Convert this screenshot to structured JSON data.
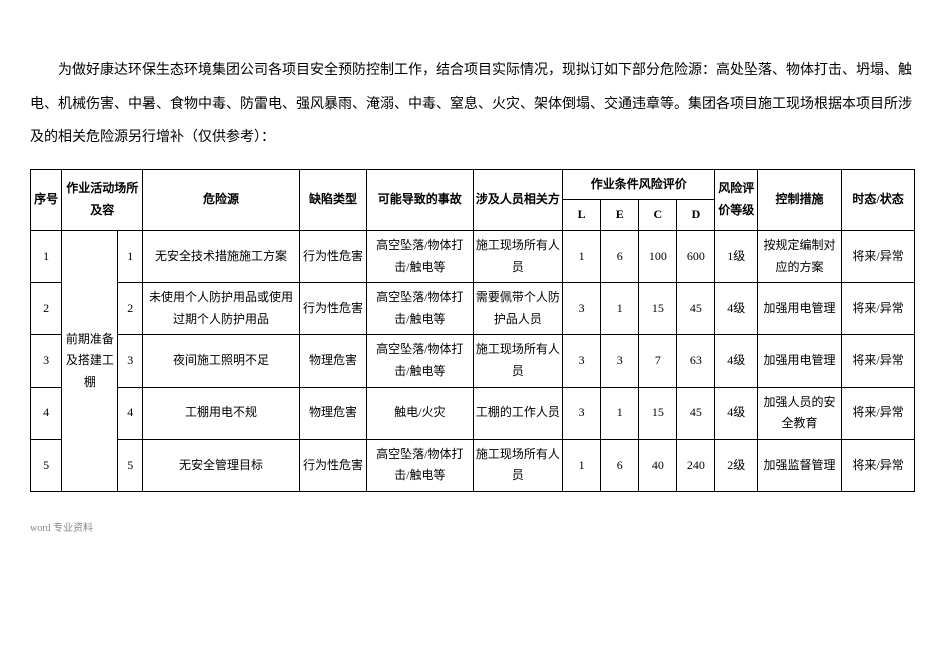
{
  "intro": "为做好康达环保生态环境集团公司各项目安全预防控制工作，结合项目实际情况，现拟订如下部分危险源：高处坠落、物体打击、坍塌、触电、机械伤害、中暑、食物中毒、防雷电、强风暴雨、淹溺、中毒、窒息、火灾、架体倒塌、交通违章等。集团各项目施工现场根据本项目所涉及的相关危险源另行增补（仅供参考）：",
  "headers": {
    "seq": "序号",
    "loc": "作业活动场所及容",
    "hazard": "危险源",
    "deftype": "缺陷类型",
    "accident": "可能导致的事故",
    "persons": "涉及人员相关方",
    "riskeval": "作业条件风险评价",
    "L": "L",
    "E": "E",
    "C": "C",
    "D": "D",
    "level": "风险评价等级",
    "control": "控制措施",
    "status": "时态/状态"
  },
  "locGroup": "前期准备及搭建工棚",
  "rows": [
    {
      "seq": "1",
      "sub": "1",
      "hazard": "无安全技术措施施工方案",
      "deftype": "行为性危害",
      "accident": "高空坠落/物体打击/触电等",
      "persons": "施工现场所有人员",
      "L": "1",
      "E": "6",
      "C": "100",
      "D": "600",
      "level": "1级",
      "control": "按规定编制对应的方案",
      "status": "将来/异常"
    },
    {
      "seq": "2",
      "sub": "2",
      "hazard": "未使用个人防护用品或使用过期个人防护用品",
      "deftype": "行为性危害",
      "accident": "高空坠落/物体打击/触电等",
      "persons": "需要佩带个人防护品人员",
      "L": "3",
      "E": "1",
      "C": "15",
      "D": "45",
      "level": "4级",
      "control": "加强用电管理",
      "status": "将来/异常"
    },
    {
      "seq": "3",
      "sub": "3",
      "hazard": "夜间施工照明不足",
      "deftype": "物理危害",
      "accident": "高空坠落/物体打击/触电等",
      "persons": "施工现场所有人员",
      "L": "3",
      "E": "3",
      "C": "7",
      "D": "63",
      "level": "4级",
      "control": "加强用电管理",
      "status": "将来/异常"
    },
    {
      "seq": "4",
      "sub": "4",
      "hazard": "工棚用电不规",
      "deftype": "物理危害",
      "accident": "触电/火灾",
      "persons": "工棚的工作人员",
      "L": "3",
      "E": "1",
      "C": "15",
      "D": "45",
      "level": "4级",
      "control": "加强人员的安全教育",
      "status": "将来/异常"
    },
    {
      "seq": "5",
      "sub": "5",
      "hazard": "无安全管理目标",
      "deftype": "行为性危害",
      "accident": "高空坠落/物体打击/触电等",
      "persons": "施工现场所有人员",
      "L": "1",
      "E": "6",
      "C": "40",
      "D": "240",
      "level": "2级",
      "control": "加强监督管理",
      "status": "将来/异常"
    }
  ],
  "footer": "word  专业资料"
}
